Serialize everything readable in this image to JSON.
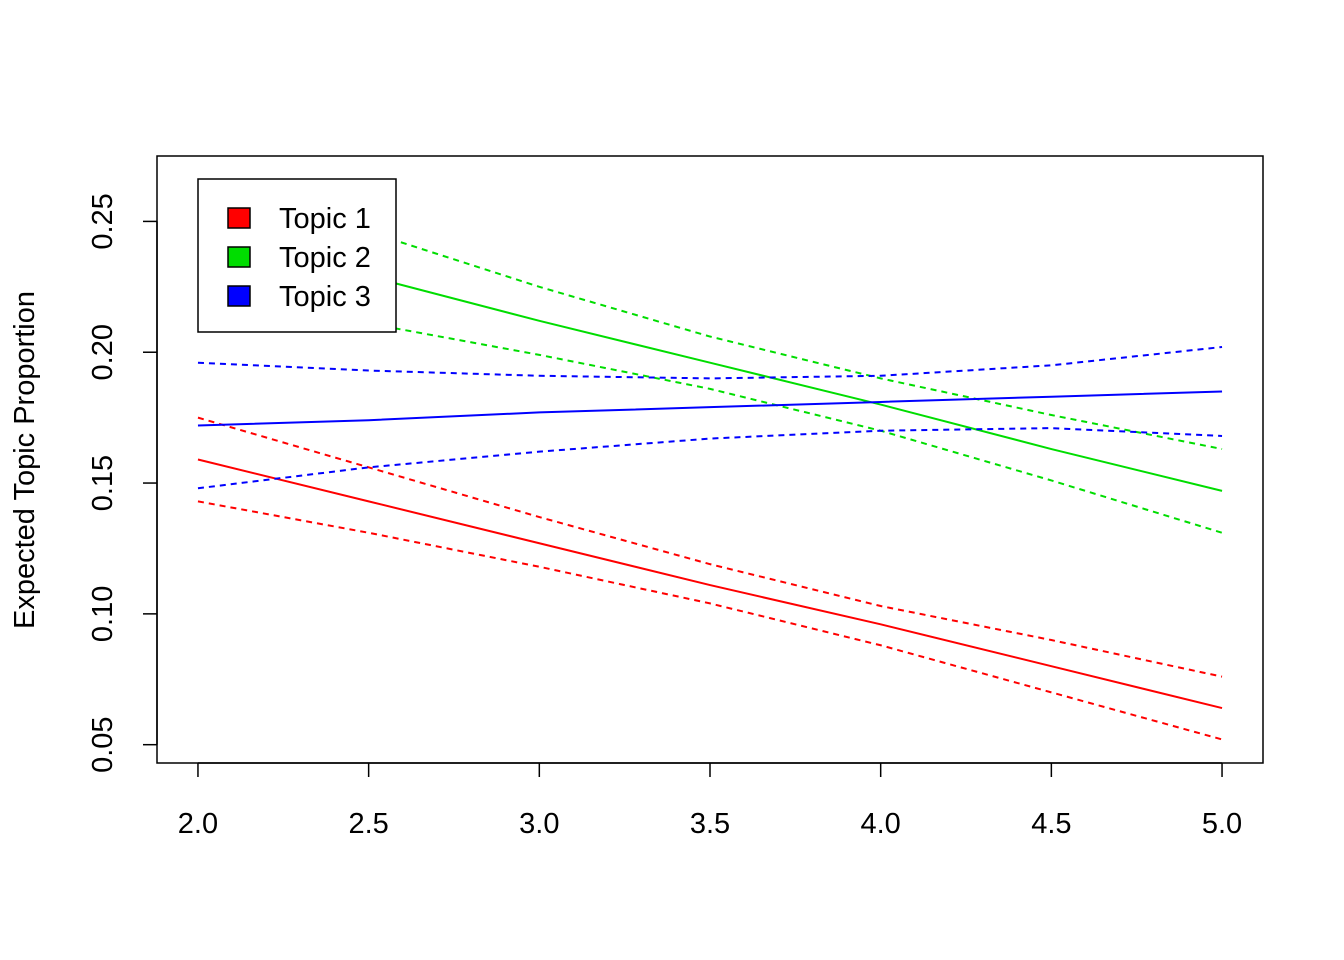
{
  "chart_data": {
    "type": "line",
    "title": "",
    "xlabel": "",
    "ylabel": "Expected Topic Proportion",
    "xlim": [
      1.88,
      5.12
    ],
    "ylim": [
      0.043,
      0.275
    ],
    "x_ticks": [
      2.0,
      2.5,
      3.0,
      3.5,
      4.0,
      4.5,
      5.0
    ],
    "x_tick_labels": [
      "2.0",
      "2.5",
      "3.0",
      "3.5",
      "4.0",
      "4.5",
      "5.0"
    ],
    "y_ticks": [
      0.05,
      0.1,
      0.15,
      0.2,
      0.25
    ],
    "y_tick_labels": [
      "0.05",
      "0.10",
      "0.15",
      "0.20",
      "0.25"
    ],
    "grid": false,
    "legend_position": "top-left",
    "x": [
      2.0,
      2.5,
      3.0,
      3.5,
      4.0,
      4.5,
      5.0
    ],
    "series": [
      {
        "name": "Topic 1",
        "color": "#FF0000",
        "mean": [
          0.159,
          0.143,
          0.127,
          0.111,
          0.096,
          0.08,
          0.064
        ],
        "upper": [
          0.175,
          0.156,
          0.137,
          0.119,
          0.103,
          0.09,
          0.076
        ],
        "lower": [
          0.143,
          0.131,
          0.118,
          0.104,
          0.088,
          0.07,
          0.052
        ]
      },
      {
        "name": "Topic 2",
        "color": "#00DD00",
        "mean": [
          0.239,
          0.229,
          0.212,
          0.196,
          0.18,
          0.163,
          0.147
        ],
        "upper": [
          0.261,
          0.246,
          0.225,
          0.206,
          0.19,
          0.176,
          0.163
        ],
        "lower": [
          0.218,
          0.211,
          0.199,
          0.186,
          0.17,
          0.151,
          0.131
        ]
      },
      {
        "name": "Topic 3",
        "color": "#0000FF",
        "mean": [
          0.172,
          0.174,
          0.177,
          0.179,
          0.181,
          0.183,
          0.185
        ],
        "upper": [
          0.196,
          0.193,
          0.191,
          0.19,
          0.191,
          0.195,
          0.202
        ],
        "lower": [
          0.148,
          0.156,
          0.162,
          0.167,
          0.17,
          0.171,
          0.168
        ]
      }
    ]
  }
}
